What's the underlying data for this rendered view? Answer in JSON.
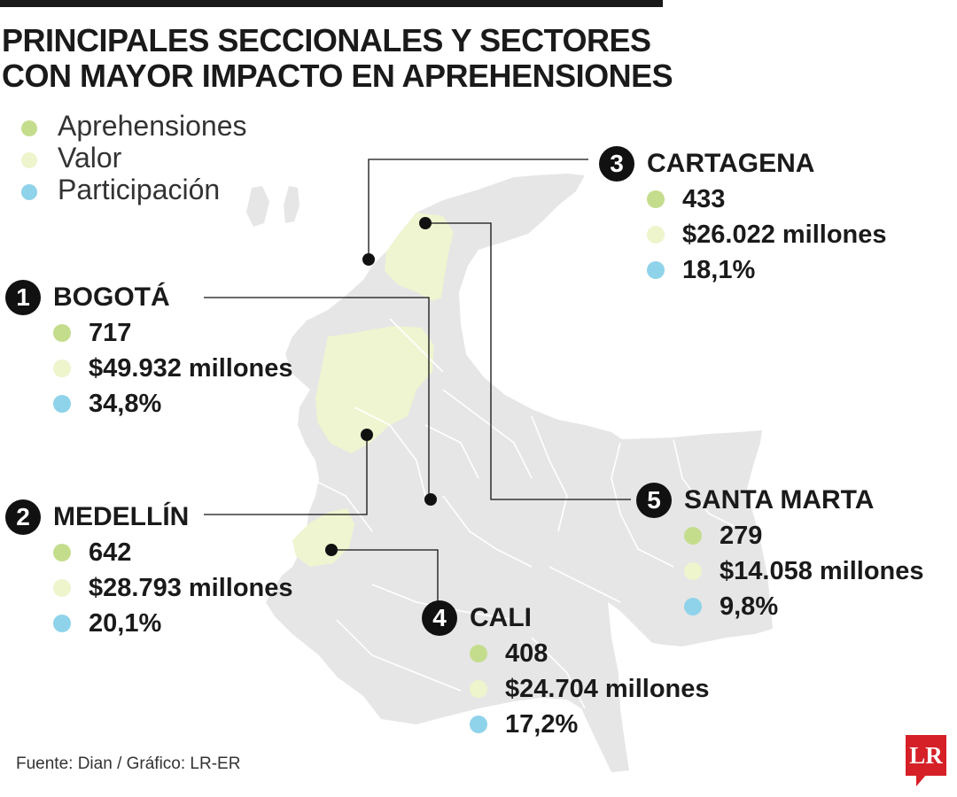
{
  "title": {
    "line1": "PRINCIPALES SECCIONALES Y SECTORES",
    "line2": "CON MAYOR IMPACTO EN APREHENSIONES"
  },
  "legend": [
    {
      "label": "Aprehensiones",
      "color": "#c4dd8d"
    },
    {
      "label": "Valor",
      "color": "#eef4cc"
    },
    {
      "label": "Participación",
      "color": "#8fd3ea"
    }
  ],
  "colors": {
    "map_fill": "#e6e6e6",
    "map_highlight": "#eef5d0",
    "marker": "#111111",
    "logo": "#d62027"
  },
  "cities": [
    {
      "rank": "1",
      "name": "BOGOTÁ",
      "aprehensiones": "717",
      "valor": "$49.932 millones",
      "participacion": "34,8%"
    },
    {
      "rank": "2",
      "name": "MEDELLÍN",
      "aprehensiones": "642",
      "valor": "$28.793 millones",
      "participacion": "20,1%"
    },
    {
      "rank": "3",
      "name": "CARTAGENA",
      "aprehensiones": "433",
      "valor": "$26.022 millones",
      "participacion": "18,1%"
    },
    {
      "rank": "4",
      "name": "CALI",
      "aprehensiones": "408",
      "valor": "$24.704 millones",
      "participacion": "17,2%"
    },
    {
      "rank": "5",
      "name": "SANTA MARTA",
      "aprehensiones": "279",
      "valor": "$14.058 millones",
      "participacion": "9,8%"
    }
  ],
  "source": "Fuente: Dian / Gráfico: LR-ER",
  "logo": {
    "text": "LR",
    "icon": "lr-logo-icon"
  }
}
